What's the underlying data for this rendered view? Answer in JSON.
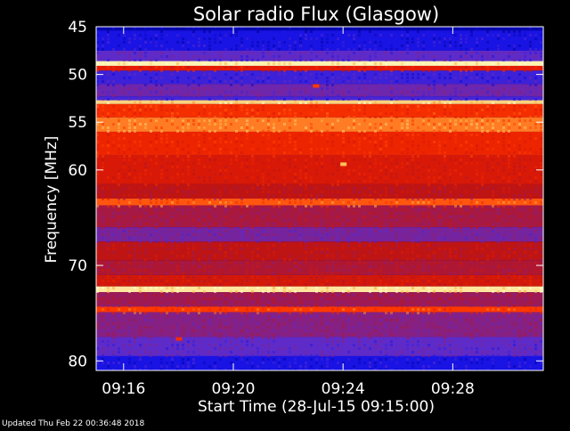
{
  "chart_data": {
    "type": "heatmap",
    "title": "Solar radio Flux (Glasgow)",
    "xlabel": "Start Time (28-Jul-15 09:15:00)",
    "ylabel": "Frequency [MHz]",
    "x_range_minutes": [
      0,
      16.3
    ],
    "x_ticks": [
      {
        "label": "09:16",
        "minute": 1
      },
      {
        "label": "09:20",
        "minute": 5
      },
      {
        "label": "09:24",
        "minute": 9
      },
      {
        "label": "09:28",
        "minute": 13
      }
    ],
    "y_range_mhz": [
      45,
      81
    ],
    "y_scale": "linear, increasing downward",
    "y_ticks": [
      45,
      50,
      55,
      60,
      70,
      80
    ],
    "y_tick_labels": [
      "45",
      "50",
      "55",
      "60",
      "70",
      "80"
    ],
    "colormap": [
      "#00008c",
      "#1010e6",
      "#5a2ccf",
      "#8c1e78",
      "#be1414",
      "#e61c00",
      "#ff3a00",
      "#ffb040",
      "#ffffc8"
    ],
    "frequency_bands": [
      {
        "from_mhz": 45.0,
        "to_mhz": 45.4,
        "level": 0.05
      },
      {
        "from_mhz": 45.4,
        "to_mhz": 47.5,
        "level": 0.14
      },
      {
        "from_mhz": 47.5,
        "to_mhz": 48.6,
        "level": 0.26
      },
      {
        "from_mhz": 48.6,
        "to_mhz": 49.1,
        "level": 0.98
      },
      {
        "from_mhz": 49.1,
        "to_mhz": 49.6,
        "level": 0.62
      },
      {
        "from_mhz": 49.6,
        "to_mhz": 51.0,
        "level": 0.2
      },
      {
        "from_mhz": 51.0,
        "to_mhz": 52.3,
        "level": 0.3
      },
      {
        "from_mhz": 52.3,
        "to_mhz": 52.7,
        "level": 0.22
      },
      {
        "from_mhz": 52.7,
        "to_mhz": 53.1,
        "level": 0.93
      },
      {
        "from_mhz": 53.1,
        "to_mhz": 54.5,
        "level": 0.7
      },
      {
        "from_mhz": 54.5,
        "to_mhz": 56.0,
        "level": 0.82
      },
      {
        "from_mhz": 56.0,
        "to_mhz": 58.5,
        "level": 0.66
      },
      {
        "from_mhz": 58.5,
        "to_mhz": 61.5,
        "level": 0.58
      },
      {
        "from_mhz": 61.5,
        "to_mhz": 63.0,
        "level": 0.5
      },
      {
        "from_mhz": 63.0,
        "to_mhz": 63.7,
        "level": 0.78
      },
      {
        "from_mhz": 63.7,
        "to_mhz": 66.0,
        "level": 0.44
      },
      {
        "from_mhz": 66.0,
        "to_mhz": 67.5,
        "level": 0.32
      },
      {
        "from_mhz": 67.5,
        "to_mhz": 69.5,
        "level": 0.5
      },
      {
        "from_mhz": 69.5,
        "to_mhz": 71.0,
        "level": 0.46
      },
      {
        "from_mhz": 71.0,
        "to_mhz": 72.2,
        "level": 0.56
      },
      {
        "from_mhz": 72.2,
        "to_mhz": 72.8,
        "level": 0.96
      },
      {
        "from_mhz": 72.8,
        "to_mhz": 74.3,
        "level": 0.42
      },
      {
        "from_mhz": 74.3,
        "to_mhz": 74.9,
        "level": 0.74
      },
      {
        "from_mhz": 74.9,
        "to_mhz": 77.5,
        "level": 0.36
      },
      {
        "from_mhz": 77.5,
        "to_mhz": 79.5,
        "level": 0.26
      },
      {
        "from_mhz": 79.5,
        "to_mhz": 81.0,
        "level": 0.14
      }
    ],
    "bursts": [
      {
        "minute": 8.0,
        "mhz": 51.2,
        "level": 0.75
      },
      {
        "minute": 9.0,
        "mhz": 59.4,
        "level": 0.9
      },
      {
        "minute": 3.0,
        "mhz": 77.7,
        "level": 0.7
      }
    ]
  },
  "footer": {
    "updated": "Updated Thu Feb 22 00:36:48 2018"
  }
}
